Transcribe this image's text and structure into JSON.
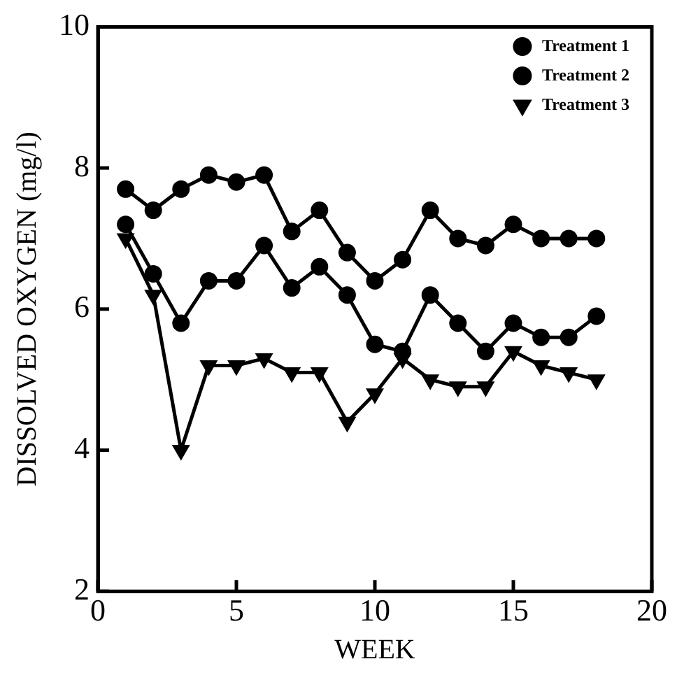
{
  "chart_data": {
    "type": "line",
    "xlabel": "WEEK",
    "ylabel": "DISSOLVED OXYGEN (mg/l)",
    "x": [
      1,
      2,
      3,
      4,
      5,
      6,
      7,
      8,
      9,
      10,
      11,
      12,
      13,
      14,
      15,
      16,
      17,
      18
    ],
    "xlim": [
      0,
      20
    ],
    "xticks": [
      0,
      5,
      10,
      15,
      20
    ],
    "ylim": [
      2,
      10
    ],
    "yticks": [
      2,
      4,
      6,
      8,
      10
    ],
    "grid": false,
    "legend": "top right",
    "line_style": "solid",
    "series": [
      {
        "name": "Treatment 1",
        "color": "#000000",
        "marker": "circle",
        "values": [
          7.7,
          7.4,
          7.7,
          7.9,
          7.8,
          7.9,
          7.1,
          7.4,
          6.8,
          6.4,
          6.7,
          7.4,
          7.0,
          6.9,
          7.2,
          7.0,
          7.0,
          7.0
        ]
      },
      {
        "name": "Treatment 2",
        "color": "#000000",
        "marker": "circle",
        "values": [
          7.2,
          6.5,
          5.8,
          6.4,
          6.4,
          6.9,
          6.3,
          6.6,
          6.2,
          5.5,
          5.4,
          6.2,
          5.8,
          5.4,
          5.8,
          5.6,
          5.6,
          5.9
        ]
      },
      {
        "name": "Treatment 3",
        "color": "#000000",
        "marker": "triangle",
        "values": [
          7.0,
          6.2,
          4.0,
          5.2,
          5.2,
          5.3,
          5.1,
          5.1,
          4.4,
          4.8,
          5.3,
          5.0,
          4.9,
          4.9,
          5.4,
          5.2,
          5.1,
          5.0
        ]
      }
    ]
  }
}
